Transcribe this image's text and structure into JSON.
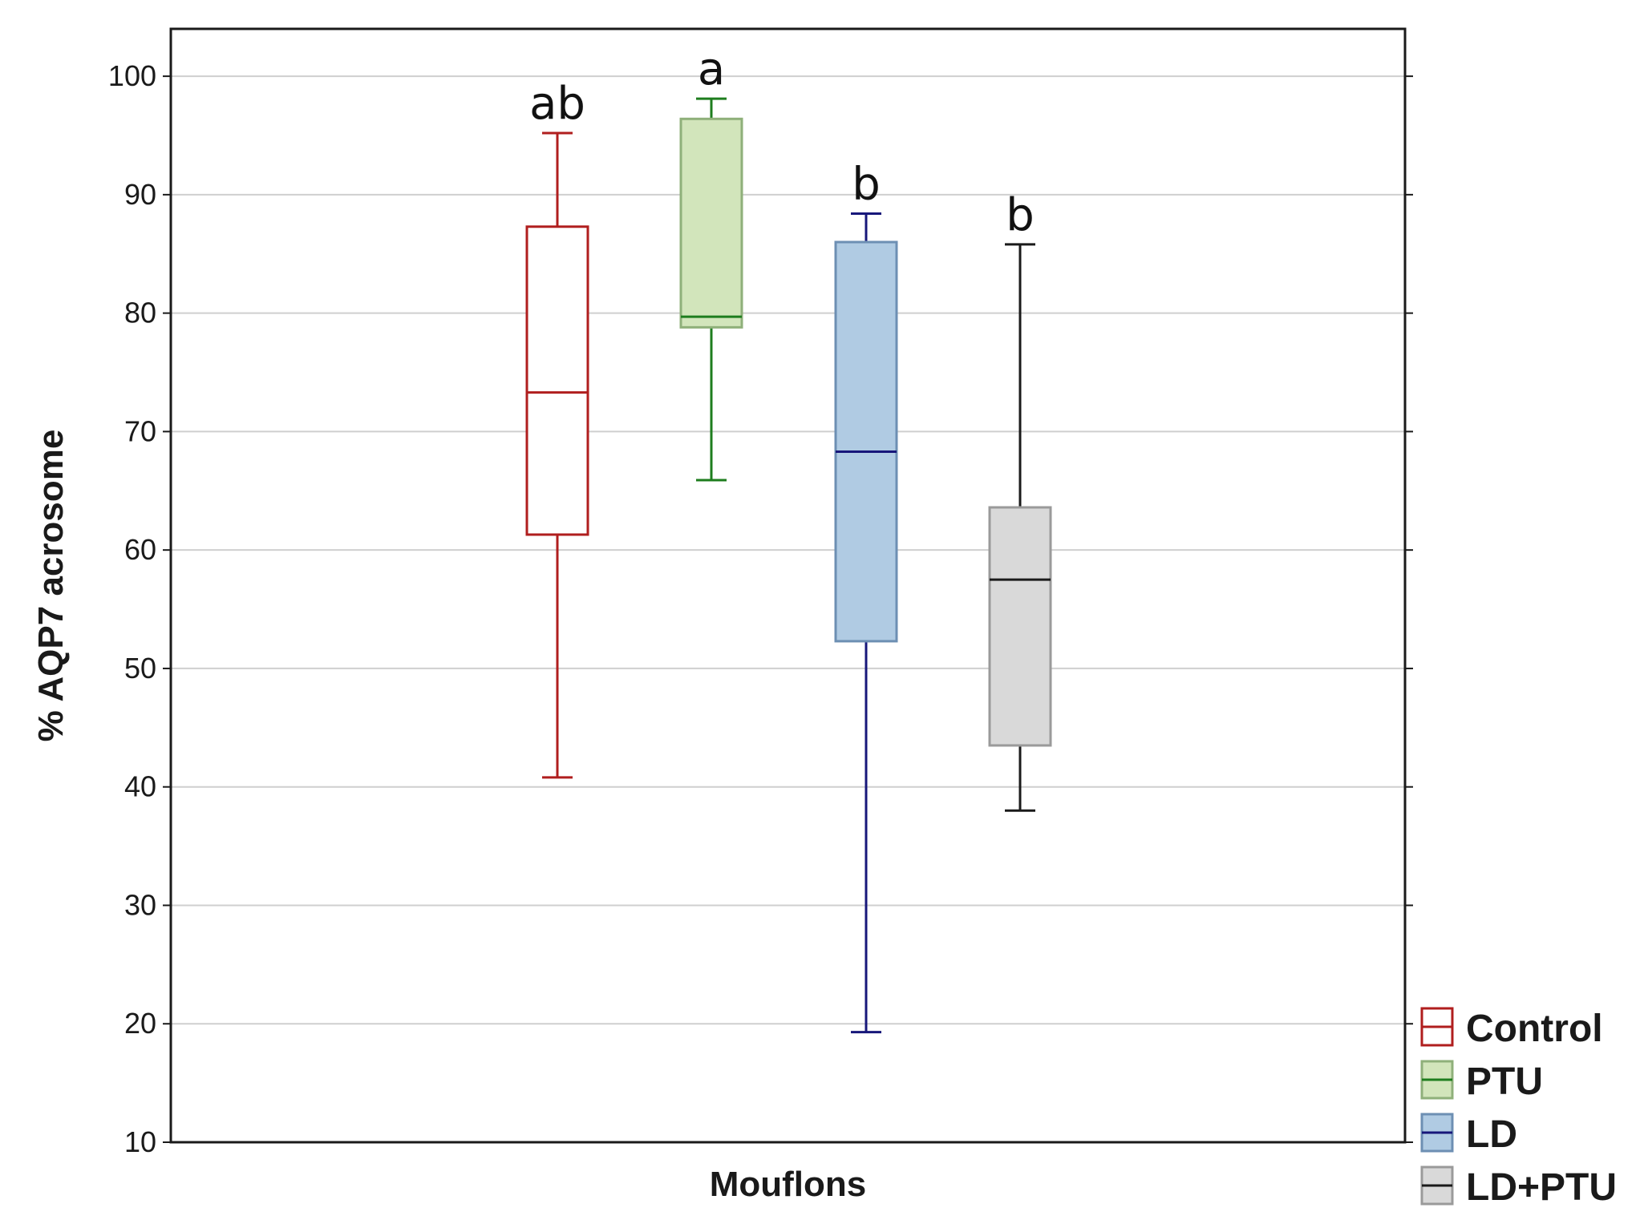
{
  "chart_data": {
    "type": "box",
    "xlabel": "Mouflons",
    "ylabel": "% AQP7 acrosome",
    "ylim": [
      10,
      104
    ],
    "yticks": [
      10,
      20,
      30,
      40,
      50,
      60,
      70,
      80,
      90,
      100
    ],
    "grid": true,
    "legend_position": "bottom-right outside",
    "series": [
      {
        "name": "Control",
        "min": 40.8,
        "q1": 61.3,
        "median": 73.3,
        "q3": 87.3,
        "max": 95.2,
        "letter": "ab",
        "stroke": "#b01e1e",
        "fill": "#ffffff"
      },
      {
        "name": "PTU",
        "min": 65.9,
        "q1": 78.8,
        "median": 79.7,
        "q3": 96.4,
        "max": 98.1,
        "letter": "a",
        "stroke": "#1e7d1e",
        "fill": "#d2e5bb",
        "box_stroke": "#8fb07a"
      },
      {
        "name": "LD",
        "min": 19.3,
        "q1": 52.3,
        "median": 68.3,
        "q3": 86.0,
        "max": 88.4,
        "letter": "b",
        "stroke": "#17177a",
        "fill": "#b0cbe3",
        "box_stroke": "#6d8fb3"
      },
      {
        "name": "LD+PTU",
        "min": 38.0,
        "q1": 43.5,
        "median": 57.5,
        "q3": 63.6,
        "max": 85.8,
        "letter": "b",
        "stroke": "#1a1a1a",
        "fill": "#d9d9d9",
        "box_stroke": "#9a9a9a"
      }
    ]
  }
}
